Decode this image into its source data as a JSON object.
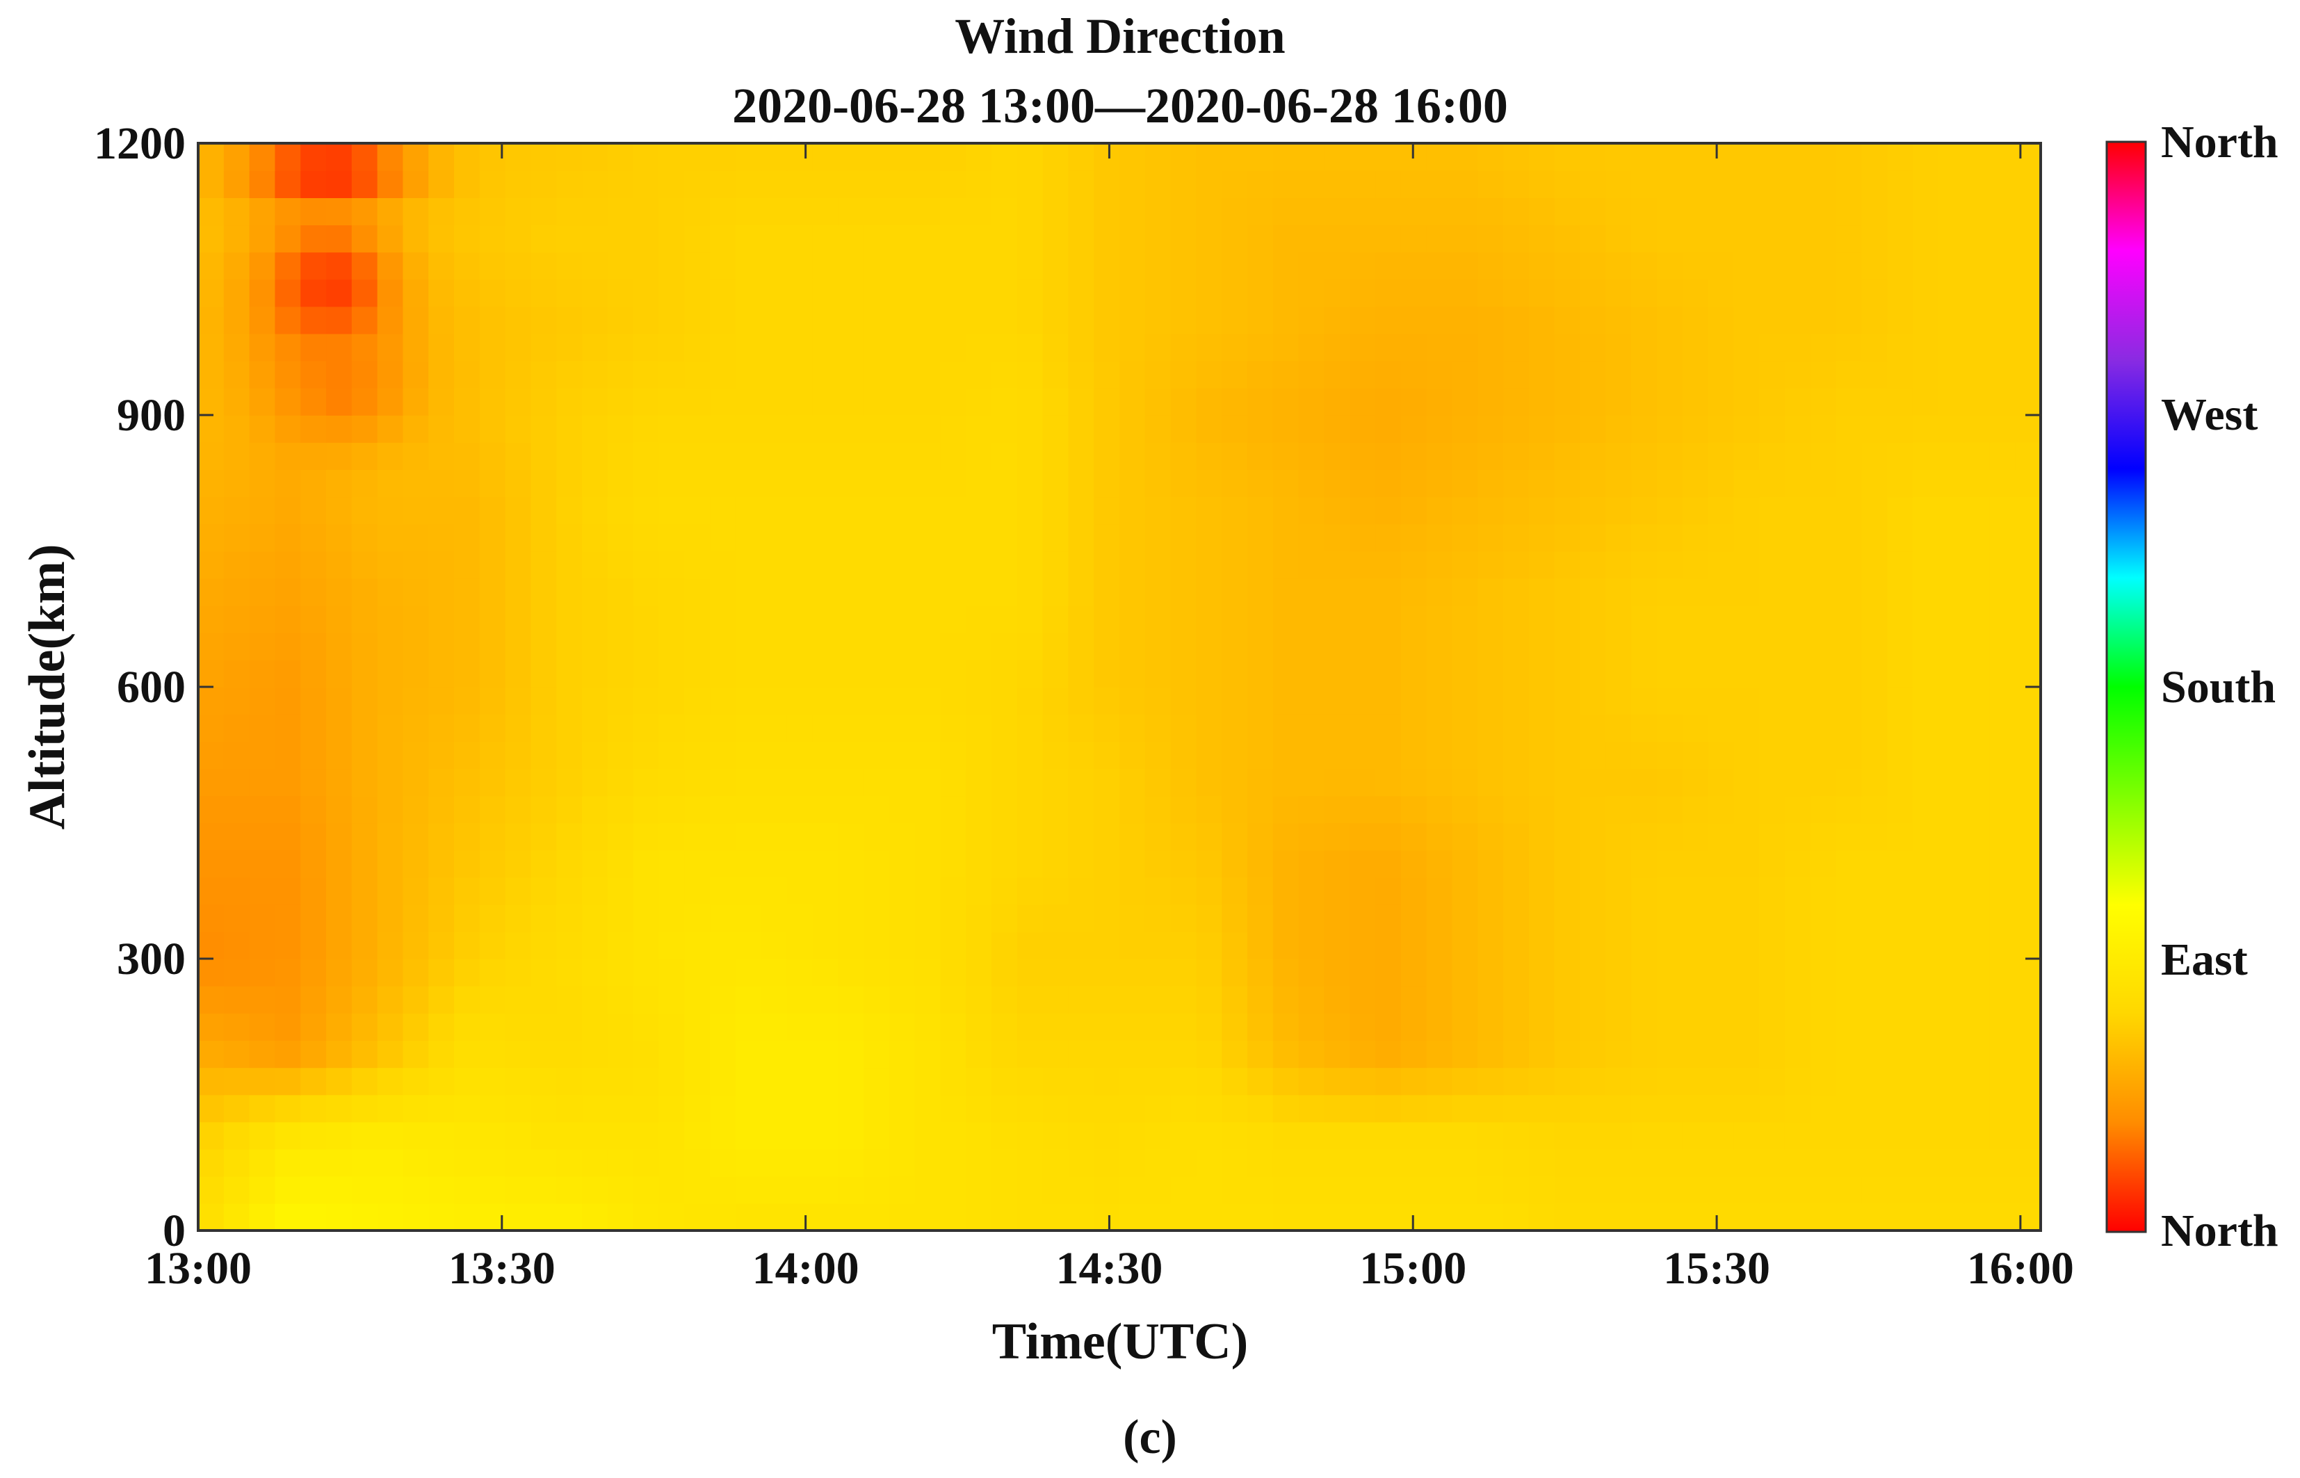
{
  "chart_data": {
    "type": "heatmap",
    "title": "Wind Direction",
    "subtitle": "2020-06-28 13:00—2020-06-28 16:00",
    "xlabel": "Time(UTC)",
    "ylabel": "Altitude(km)",
    "x_ticks": [
      "13:00",
      "13:30",
      "14:00",
      "14:30",
      "15:00",
      "15:30",
      "16:00"
    ],
    "y_ticks": [
      0,
      300,
      600,
      900,
      1200
    ],
    "xlim_minutes_after_13": [
      0,
      182
    ],
    "ylim": [
      0,
      1200
    ],
    "grid": false,
    "colorbar": {
      "labels": [
        "North",
        "East",
        "South",
        "West",
        "North"
      ],
      "colors": [
        "#ff0000",
        "#ff8c00",
        "#ffd700",
        "#ffff00",
        "#7fff00",
        "#00ff00",
        "#00ffff",
        "#0000ff",
        "#8a2be2",
        "#ff00ff",
        "#ff0000"
      ]
    },
    "z_scale_note": "values 0..1 along colorbar from bottom North(0) to top North(1); observed range ~0.02-0.27",
    "grid_times_minutes": [
      0,
      9,
      18,
      27,
      36,
      45,
      54,
      63,
      72,
      81,
      90,
      99,
      108,
      117,
      126,
      135,
      144,
      153,
      162,
      171,
      180
    ],
    "grid_altitudes": [
      0,
      100,
      200,
      300,
      400,
      500,
      600,
      700,
      800,
      900,
      1000,
      1100,
      1200
    ],
    "z": [
      [
        0.22,
        0.28,
        0.27,
        0.26,
        0.26,
        0.24,
        0.23,
        0.23,
        0.23,
        0.22,
        0.22,
        0.22,
        0.22,
        0.22,
        0.22,
        0.21,
        0.21,
        0.21,
        0.21,
        0.21,
        0.21
      ],
      [
        0.19,
        0.24,
        0.25,
        0.24,
        0.23,
        0.23,
        0.25,
        0.25,
        0.23,
        0.22,
        0.21,
        0.22,
        0.21,
        0.21,
        0.21,
        0.2,
        0.2,
        0.2,
        0.2,
        0.2,
        0.2
      ],
      [
        0.14,
        0.12,
        0.17,
        0.22,
        0.21,
        0.22,
        0.25,
        0.25,
        0.23,
        0.2,
        0.2,
        0.2,
        0.16,
        0.14,
        0.16,
        0.18,
        0.19,
        0.19,
        0.2,
        0.2,
        0.2
      ],
      [
        0.1,
        0.11,
        0.15,
        0.19,
        0.21,
        0.23,
        0.24,
        0.23,
        0.22,
        0.19,
        0.19,
        0.19,
        0.15,
        0.14,
        0.16,
        0.18,
        0.19,
        0.19,
        0.2,
        0.2,
        0.2
      ],
      [
        0.11,
        0.11,
        0.15,
        0.18,
        0.2,
        0.23,
        0.23,
        0.23,
        0.22,
        0.2,
        0.19,
        0.18,
        0.15,
        0.14,
        0.16,
        0.18,
        0.19,
        0.19,
        0.2,
        0.2,
        0.2
      ],
      [
        0.12,
        0.12,
        0.15,
        0.17,
        0.19,
        0.21,
        0.22,
        0.22,
        0.22,
        0.2,
        0.19,
        0.17,
        0.16,
        0.16,
        0.17,
        0.18,
        0.18,
        0.19,
        0.19,
        0.2,
        0.2
      ],
      [
        0.13,
        0.12,
        0.15,
        0.16,
        0.19,
        0.2,
        0.21,
        0.21,
        0.21,
        0.2,
        0.18,
        0.17,
        0.16,
        0.16,
        0.17,
        0.18,
        0.19,
        0.19,
        0.19,
        0.2,
        0.2
      ],
      [
        0.14,
        0.13,
        0.15,
        0.16,
        0.19,
        0.2,
        0.21,
        0.21,
        0.21,
        0.21,
        0.18,
        0.17,
        0.16,
        0.16,
        0.17,
        0.18,
        0.19,
        0.19,
        0.19,
        0.2,
        0.2
      ],
      [
        0.15,
        0.14,
        0.16,
        0.16,
        0.19,
        0.21,
        0.21,
        0.21,
        0.21,
        0.21,
        0.18,
        0.17,
        0.16,
        0.15,
        0.16,
        0.17,
        0.18,
        0.19,
        0.19,
        0.2,
        0.2
      ],
      [
        0.16,
        0.15,
        0.17,
        0.17,
        0.19,
        0.2,
        0.2,
        0.2,
        0.2,
        0.21,
        0.18,
        0.16,
        0.15,
        0.14,
        0.15,
        0.16,
        0.17,
        0.18,
        0.19,
        0.19,
        0.19
      ],
      [
        0.16,
        0.15,
        0.17,
        0.17,
        0.18,
        0.19,
        0.2,
        0.2,
        0.2,
        0.2,
        0.18,
        0.17,
        0.16,
        0.15,
        0.15,
        0.16,
        0.17,
        0.18,
        0.18,
        0.19,
        0.19
      ],
      [
        0.17,
        0.16,
        0.18,
        0.18,
        0.19,
        0.19,
        0.2,
        0.2,
        0.2,
        0.2,
        0.18,
        0.17,
        0.16,
        0.16,
        0.16,
        0.17,
        0.18,
        0.18,
        0.18,
        0.19,
        0.19
      ],
      [
        0.17,
        0.16,
        0.18,
        0.18,
        0.18,
        0.19,
        0.19,
        0.19,
        0.19,
        0.2,
        0.18,
        0.17,
        0.17,
        0.17,
        0.17,
        0.18,
        0.18,
        0.18,
        0.18,
        0.19,
        0.19
      ]
    ],
    "hotspots": [
      {
        "t": 13,
        "alt": 1040,
        "z": 0.04,
        "sigma_t": 5,
        "sigma_alt": 60
      },
      {
        "t": 13,
        "alt": 1170,
        "z": 0.02,
        "sigma_t": 6,
        "sigma_alt": 25
      },
      {
        "t": 14,
        "alt": 930,
        "z": 0.09,
        "sigma_t": 5,
        "sigma_alt": 45
      }
    ]
  },
  "caption": "(c)"
}
